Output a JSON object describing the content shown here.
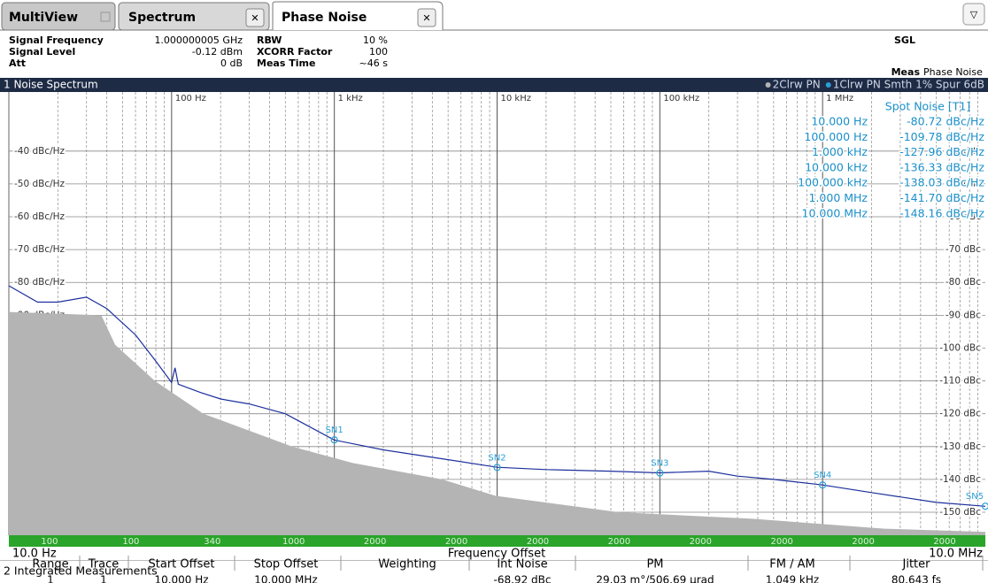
{
  "tabs": [
    "MultiView",
    "Spectrum",
    "Phase Noise"
  ],
  "header": {
    "left": [
      {
        "label": "Signal Frequency",
        "value": "1.000000005 GHz"
      },
      {
        "label": "Signal Level",
        "value": "-0.12 dBm"
      },
      {
        "label": "Att",
        "value": "0 dB"
      }
    ],
    "mid": [
      {
        "label": "RBW",
        "value": "10 %"
      },
      {
        "label": "XCORR Factor",
        "value": "100"
      },
      {
        "label": "Meas Time",
        "value": "~46 s"
      }
    ],
    "status": "SGL",
    "meas_label": "Meas",
    "meas_value": "Phase Noise"
  },
  "chart_data": {
    "type": "line",
    "title": "1 Noise Spectrum",
    "xlabel": "Frequency Offset",
    "xstart_label": "10.0 Hz",
    "xstop_label": "10.0 MHz",
    "log_x": true,
    "grid": true,
    "xlim": [
      10,
      10000000
    ],
    "ylim": [
      -157,
      -22
    ],
    "xticks": [
      {
        "value": 100,
        "label": "100 Hz"
      },
      {
        "value": 1000,
        "label": "1 kHz"
      },
      {
        "value": 10000,
        "label": "10 kHz"
      },
      {
        "value": 100000,
        "label": "100 kHz"
      },
      {
        "value": 1000000,
        "label": "1 MHz"
      }
    ],
    "yticks": [
      {
        "value": -40,
        "label": "-40 dBc/Hz"
      },
      {
        "value": -50,
        "label": "-50 dBc/Hz"
      },
      {
        "value": -60,
        "label": "-60 dBc/Hz"
      },
      {
        "value": -70,
        "label": "-70 dBc/Hz"
      },
      {
        "value": -80,
        "label": "-80 dBc/Hz"
      },
      {
        "value": -90,
        "label": "-90 dBc/Hz"
      },
      {
        "value": -100,
        "label": "-100 dBc/Hz"
      },
      {
        "value": -110,
        "label": "-110 dBc/Hz"
      },
      {
        "value": -120,
        "label": "-120 dBc/Hz"
      },
      {
        "value": -130,
        "label": "-130 dBc/Hz"
      },
      {
        "value": -140,
        "label": "-140 dBc/Hz"
      },
      {
        "value": -150,
        "label": "-150 dBc/Hz"
      }
    ],
    "yticks_right": [
      {
        "value": -40,
        "label": "-40 dBc"
      },
      {
        "value": -50,
        "label": "-50 dBc"
      },
      {
        "value": -60,
        "label": "-60 dBc"
      },
      {
        "value": -70,
        "label": "-70 dBc"
      },
      {
        "value": -80,
        "label": "-80 dBc"
      },
      {
        "value": -90,
        "label": "-90 dBc"
      },
      {
        "value": -100,
        "label": "-100 dBc"
      },
      {
        "value": -110,
        "label": "-110 dBc"
      },
      {
        "value": -120,
        "label": "-120 dBc"
      },
      {
        "value": -130,
        "label": "-130 dBc"
      },
      {
        "value": -140,
        "label": "-140 dBc"
      },
      {
        "value": -150,
        "label": "-150 dBc"
      }
    ],
    "series": [
      {
        "name": "2Clrw PN",
        "color": "#b4b4b4",
        "fill": true,
        "x": [
          10,
          37,
          45,
          79,
          157,
          550,
          1300,
          4600,
          9800,
          56000,
          370000,
          2400000,
          10000000
        ],
        "values": [
          -89,
          -90,
          -99,
          -110,
          -120,
          -130,
          -135,
          -140,
          -145,
          -150,
          -152,
          -155,
          -156
        ]
      },
      {
        "name": "1Clrw PN Smth 1% Spur 6dB",
        "color": "#1c2f9c",
        "fill": false,
        "x": [
          10,
          15,
          20,
          30,
          40,
          60,
          80,
          100,
          105,
          110,
          150,
          200,
          300,
          500,
          1000,
          2000,
          5000,
          10000,
          20000,
          50000,
          100000,
          200000,
          300000,
          500000,
          1000000,
          2000000,
          5000000,
          10000000
        ],
        "values": [
          -81,
          -86,
          -86,
          -84.5,
          -88,
          -96,
          -104,
          -110.5,
          -106,
          -111,
          -113.5,
          -115.5,
          -117,
          -120,
          -128,
          -131,
          -134,
          -136.3,
          -137,
          -137.5,
          -138,
          -137.5,
          -139,
          -140,
          -141.7,
          -144,
          -147,
          -148.2
        ]
      }
    ],
    "markers": [
      {
        "label": "SN1",
        "x": 1000,
        "y": -127.96
      },
      {
        "label": "SN2",
        "x": 10000,
        "y": -136.33
      },
      {
        "label": "SN3",
        "x": 100000,
        "y": -138.03
      },
      {
        "label": "SN4",
        "x": 1000000,
        "y": -141.7
      },
      {
        "label": "SN5",
        "x": 10000000,
        "y": -148.16
      }
    ],
    "rbw_bar": [
      "100",
      "100",
      "340",
      "1000",
      "2000",
      "2000",
      "2000",
      "2000",
      "2000",
      "2000",
      "2000",
      "2000"
    ],
    "spot_noise": {
      "title": "Spot Noise [T1]",
      "rows": [
        {
          "offset": "10.000 Hz",
          "value": "-80.72 dBc/Hz"
        },
        {
          "offset": "100.000 Hz",
          "value": "-109.78 dBc/Hz"
        },
        {
          "offset": "1.000 kHz",
          "value": "-127.96 dBc/Hz"
        },
        {
          "offset": "10.000 kHz",
          "value": "-136.33 dBc/Hz"
        },
        {
          "offset": "100.000 kHz",
          "value": "-138.03 dBc/Hz"
        },
        {
          "offset": "1.000 MHz",
          "value": "-141.70 dBc/Hz"
        },
        {
          "offset": "10.000 MHz",
          "value": "-148.16 dBc/Hz"
        }
      ]
    }
  },
  "integrated": {
    "title": "2 Integrated Measurements",
    "columns": [
      "Range",
      "Trace",
      "Start Offset",
      "Stop Offset",
      "Weighting",
      "Int Noise",
      "PM",
      "FM / AM",
      "Jitter"
    ],
    "row": {
      "range": "1",
      "trace": "1",
      "start": "10.000 Hz",
      "stop": "10.000 MHz",
      "int_noise": "-68.92 dBc",
      "pm": "29.03 m°/506.69 µrad",
      "fm_am": "1.049 kHz",
      "jitter": "80.643 fs"
    }
  }
}
